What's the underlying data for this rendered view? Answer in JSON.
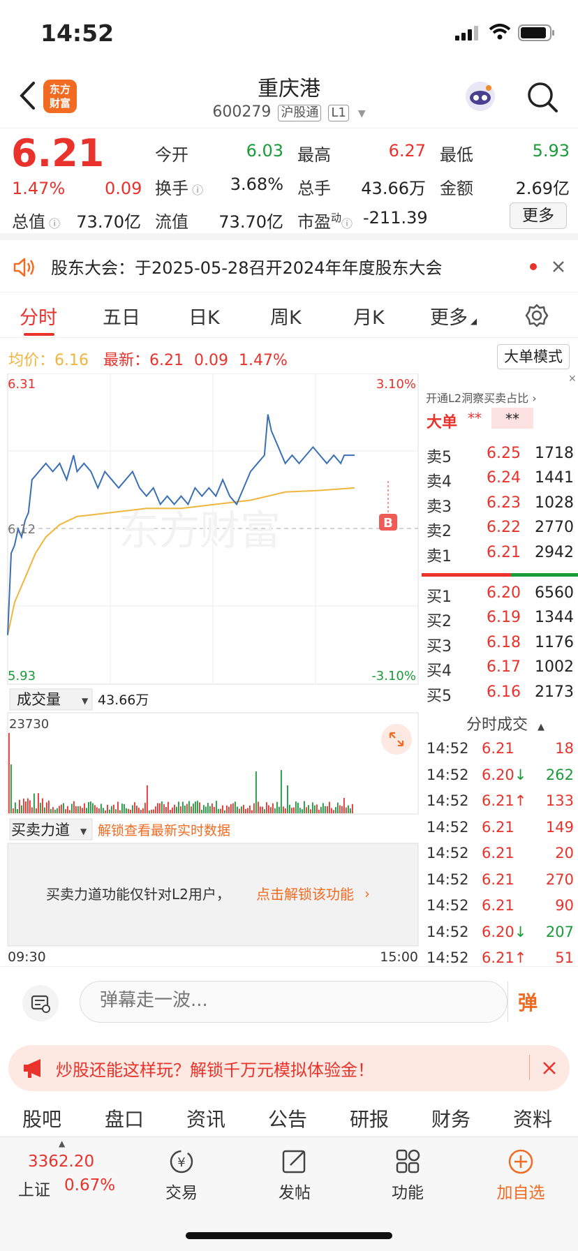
{
  "status": {
    "time": "14:52"
  },
  "header": {
    "stock_name": "重庆港",
    "stock_code": "600279",
    "tag_connect": "沪股通",
    "tag_level": "L1",
    "logo_line1": "东方",
    "logo_line2": "财富"
  },
  "quote": {
    "price": "6.21",
    "change_pct": "1.47%",
    "change": "0.09",
    "open_label": "今开",
    "open": "6.03",
    "high_label": "最高",
    "high": "6.27",
    "low_label": "最低",
    "low": "5.93",
    "turnover_label": "换手",
    "turnover": "3.68%",
    "volume_label": "总手",
    "volume": "43.66万",
    "amount_label": "金额",
    "amount": "2.69亿",
    "mktcap_label": "总值",
    "mktcap": "73.70亿",
    "float_label": "流值",
    "float": "73.70亿",
    "pe_label": "市盈",
    "pe_sup": "动",
    "pe": "-211.39",
    "more_label": "更多"
  },
  "notice": {
    "text": "股东大会：于2025-05-28召开2024年年度股东大会"
  },
  "chart_tabs": [
    "分时",
    "五日",
    "日K",
    "周K",
    "月K",
    "更多"
  ],
  "chart_info": {
    "avg_label": "均价：",
    "avg": "6.16",
    "latest_label": "最新：",
    "latest": "6.21",
    "latest_change": "0.09",
    "latest_pct": "1.47%",
    "big_order_mode": "大单模式",
    "y_max": "6.31",
    "y_mid": "6.12",
    "y_min": "5.93",
    "pct_max": "3.10%",
    "pct_min": "-3.10%",
    "volume_selector": "成交量",
    "volume_total": "43.66万",
    "volume_peak": "23730",
    "force_selector": "买卖力道",
    "force_unlock": "解锁查看最新实时数据",
    "force_notice": "买卖力道功能仅针对L2用户，",
    "force_link": "点击解锁该功能",
    "time_start": "09:30",
    "time_end": "15:00",
    "marker_label": "B",
    "watermark": "东方财富"
  },
  "chart_data": {
    "type": "line",
    "title": "",
    "x_range": [
      "09:30",
      "15:00"
    ],
    "ylim": [
      5.93,
      6.31
    ],
    "reference_close": 6.12,
    "series": [
      {
        "name": "",
        "points": [
          [
            0,
            5.99
          ],
          [
            0.01,
            6.09
          ],
          [
            0.02,
            6.1
          ],
          [
            0.03,
            6.12
          ],
          [
            0.04,
            6.11
          ],
          [
            0.05,
            6.13
          ],
          [
            0.06,
            6.14
          ],
          [
            0.07,
            6.18
          ],
          [
            0.09,
            6.19
          ],
          [
            0.11,
            6.2
          ],
          [
            0.13,
            6.19
          ],
          [
            0.15,
            6.2
          ],
          [
            0.17,
            6.18
          ],
          [
            0.19,
            6.21
          ],
          [
            0.2,
            6.19
          ],
          [
            0.22,
            6.2
          ],
          [
            0.24,
            6.19
          ],
          [
            0.26,
            6.17
          ],
          [
            0.28,
            6.19
          ],
          [
            0.3,
            6.18
          ],
          [
            0.32,
            6.17
          ],
          [
            0.34,
            6.18
          ],
          [
            0.36,
            6.19
          ],
          [
            0.38,
            6.17
          ],
          [
            0.4,
            6.16
          ],
          [
            0.42,
            6.17
          ],
          [
            0.44,
            6.15
          ],
          [
            0.46,
            6.16
          ],
          [
            0.48,
            6.15
          ],
          [
            0.5,
            6.16
          ],
          [
            0.52,
            6.15
          ],
          [
            0.54,
            6.17
          ],
          [
            0.56,
            6.16
          ],
          [
            0.58,
            6.17
          ],
          [
            0.6,
            6.16
          ],
          [
            0.62,
            6.18
          ],
          [
            0.64,
            6.16
          ],
          [
            0.66,
            6.15
          ],
          [
            0.68,
            6.17
          ],
          [
            0.7,
            6.19
          ],
          [
            0.72,
            6.2
          ],
          [
            0.74,
            6.21
          ],
          [
            0.75,
            6.26
          ],
          [
            0.76,
            6.24
          ],
          [
            0.77,
            6.23
          ],
          [
            0.78,
            6.22
          ],
          [
            0.8,
            6.2
          ],
          [
            0.82,
            6.21
          ],
          [
            0.84,
            6.2
          ],
          [
            0.86,
            6.21
          ],
          [
            0.88,
            6.22
          ],
          [
            0.9,
            6.21
          ],
          [
            0.92,
            6.2
          ],
          [
            0.94,
            6.21
          ],
          [
            0.96,
            6.2
          ],
          [
            0.97,
            6.21
          ],
          [
            1.0,
            6.21
          ]
        ]
      },
      {
        "name": "",
        "points": [
          [
            0,
            5.99
          ],
          [
            0.02,
            6.03
          ],
          [
            0.05,
            6.06
          ],
          [
            0.08,
            6.09
          ],
          [
            0.11,
            6.11
          ],
          [
            0.15,
            6.125
          ],
          [
            0.2,
            6.135
          ],
          [
            0.3,
            6.14
          ],
          [
            0.4,
            6.145
          ],
          [
            0.5,
            6.145
          ],
          [
            0.6,
            6.15
          ],
          [
            0.7,
            6.155
          ],
          [
            0.75,
            6.16
          ],
          [
            0.8,
            6.165
          ],
          [
            0.9,
            6.167
          ],
          [
            1.0,
            6.17
          ]
        ]
      }
    ]
  },
  "order_book": {
    "big_order_label": "大单",
    "big_order_v1": "**",
    "big_order_v2": "**",
    "l2_promo": "开通L2洞察买卖占比",
    "asks": [
      {
        "label": "卖5",
        "price": "6.25",
        "vol": "1718"
      },
      {
        "label": "卖4",
        "price": "6.24",
        "vol": "1441"
      },
      {
        "label": "卖3",
        "price": "6.23",
        "vol": "1028"
      },
      {
        "label": "卖2",
        "price": "6.22",
        "vol": "2770"
      },
      {
        "label": "卖1",
        "price": "6.21",
        "vol": "2942"
      }
    ],
    "bids": [
      {
        "label": "买1",
        "price": "6.20",
        "vol": "6560"
      },
      {
        "label": "买2",
        "price": "6.19",
        "vol": "1344"
      },
      {
        "label": "买3",
        "price": "6.18",
        "vol": "1176"
      },
      {
        "label": "买4",
        "price": "6.17",
        "vol": "1002"
      },
      {
        "label": "买5",
        "price": "6.16",
        "vol": "2173"
      }
    ],
    "trades_title": "分时成交",
    "trades": [
      {
        "time": "14:52",
        "price": "6.21",
        "arrow": "",
        "vol": "18",
        "dir": "up"
      },
      {
        "time": "14:52",
        "price": "6.20",
        "arrow": "↓",
        "vol": "262",
        "dir": "down"
      },
      {
        "time": "14:52",
        "price": "6.21",
        "arrow": "↑",
        "vol": "133",
        "dir": "up"
      },
      {
        "time": "14:52",
        "price": "6.21",
        "arrow": "",
        "vol": "149",
        "dir": "up"
      },
      {
        "time": "14:52",
        "price": "6.21",
        "arrow": "",
        "vol": "20",
        "dir": "up"
      },
      {
        "time": "14:52",
        "price": "6.21",
        "arrow": "",
        "vol": "270",
        "dir": "up"
      },
      {
        "time": "14:52",
        "price": "6.21",
        "arrow": "",
        "vol": "90",
        "dir": "up"
      },
      {
        "time": "14:52",
        "price": "6.20",
        "arrow": "↓",
        "vol": "207",
        "dir": "down"
      },
      {
        "time": "14:52",
        "price": "6.21",
        "arrow": "↑",
        "vol": "51",
        "dir": "up"
      }
    ]
  },
  "chat": {
    "placeholder": "弹幕走一波...",
    "send_label": "弹"
  },
  "promo": {
    "text": "炒股还能这样玩？解锁千万元模拟体验金！"
  },
  "bottom_tabs": [
    "股吧",
    "盘口",
    "资讯",
    "公告",
    "研报",
    "财务",
    "资料"
  ],
  "bottom_nav": {
    "index_value": "3362.20",
    "index_name": "上证",
    "index_pct": "0.67%",
    "items": [
      "交易",
      "发帖",
      "功能",
      "加自选"
    ]
  },
  "colors": {
    "up": "#e8322b",
    "down": "#1a9b3a",
    "brand": "#f26b22",
    "price_line": "#3a6fb5",
    "avg_line": "#f0b53c"
  }
}
